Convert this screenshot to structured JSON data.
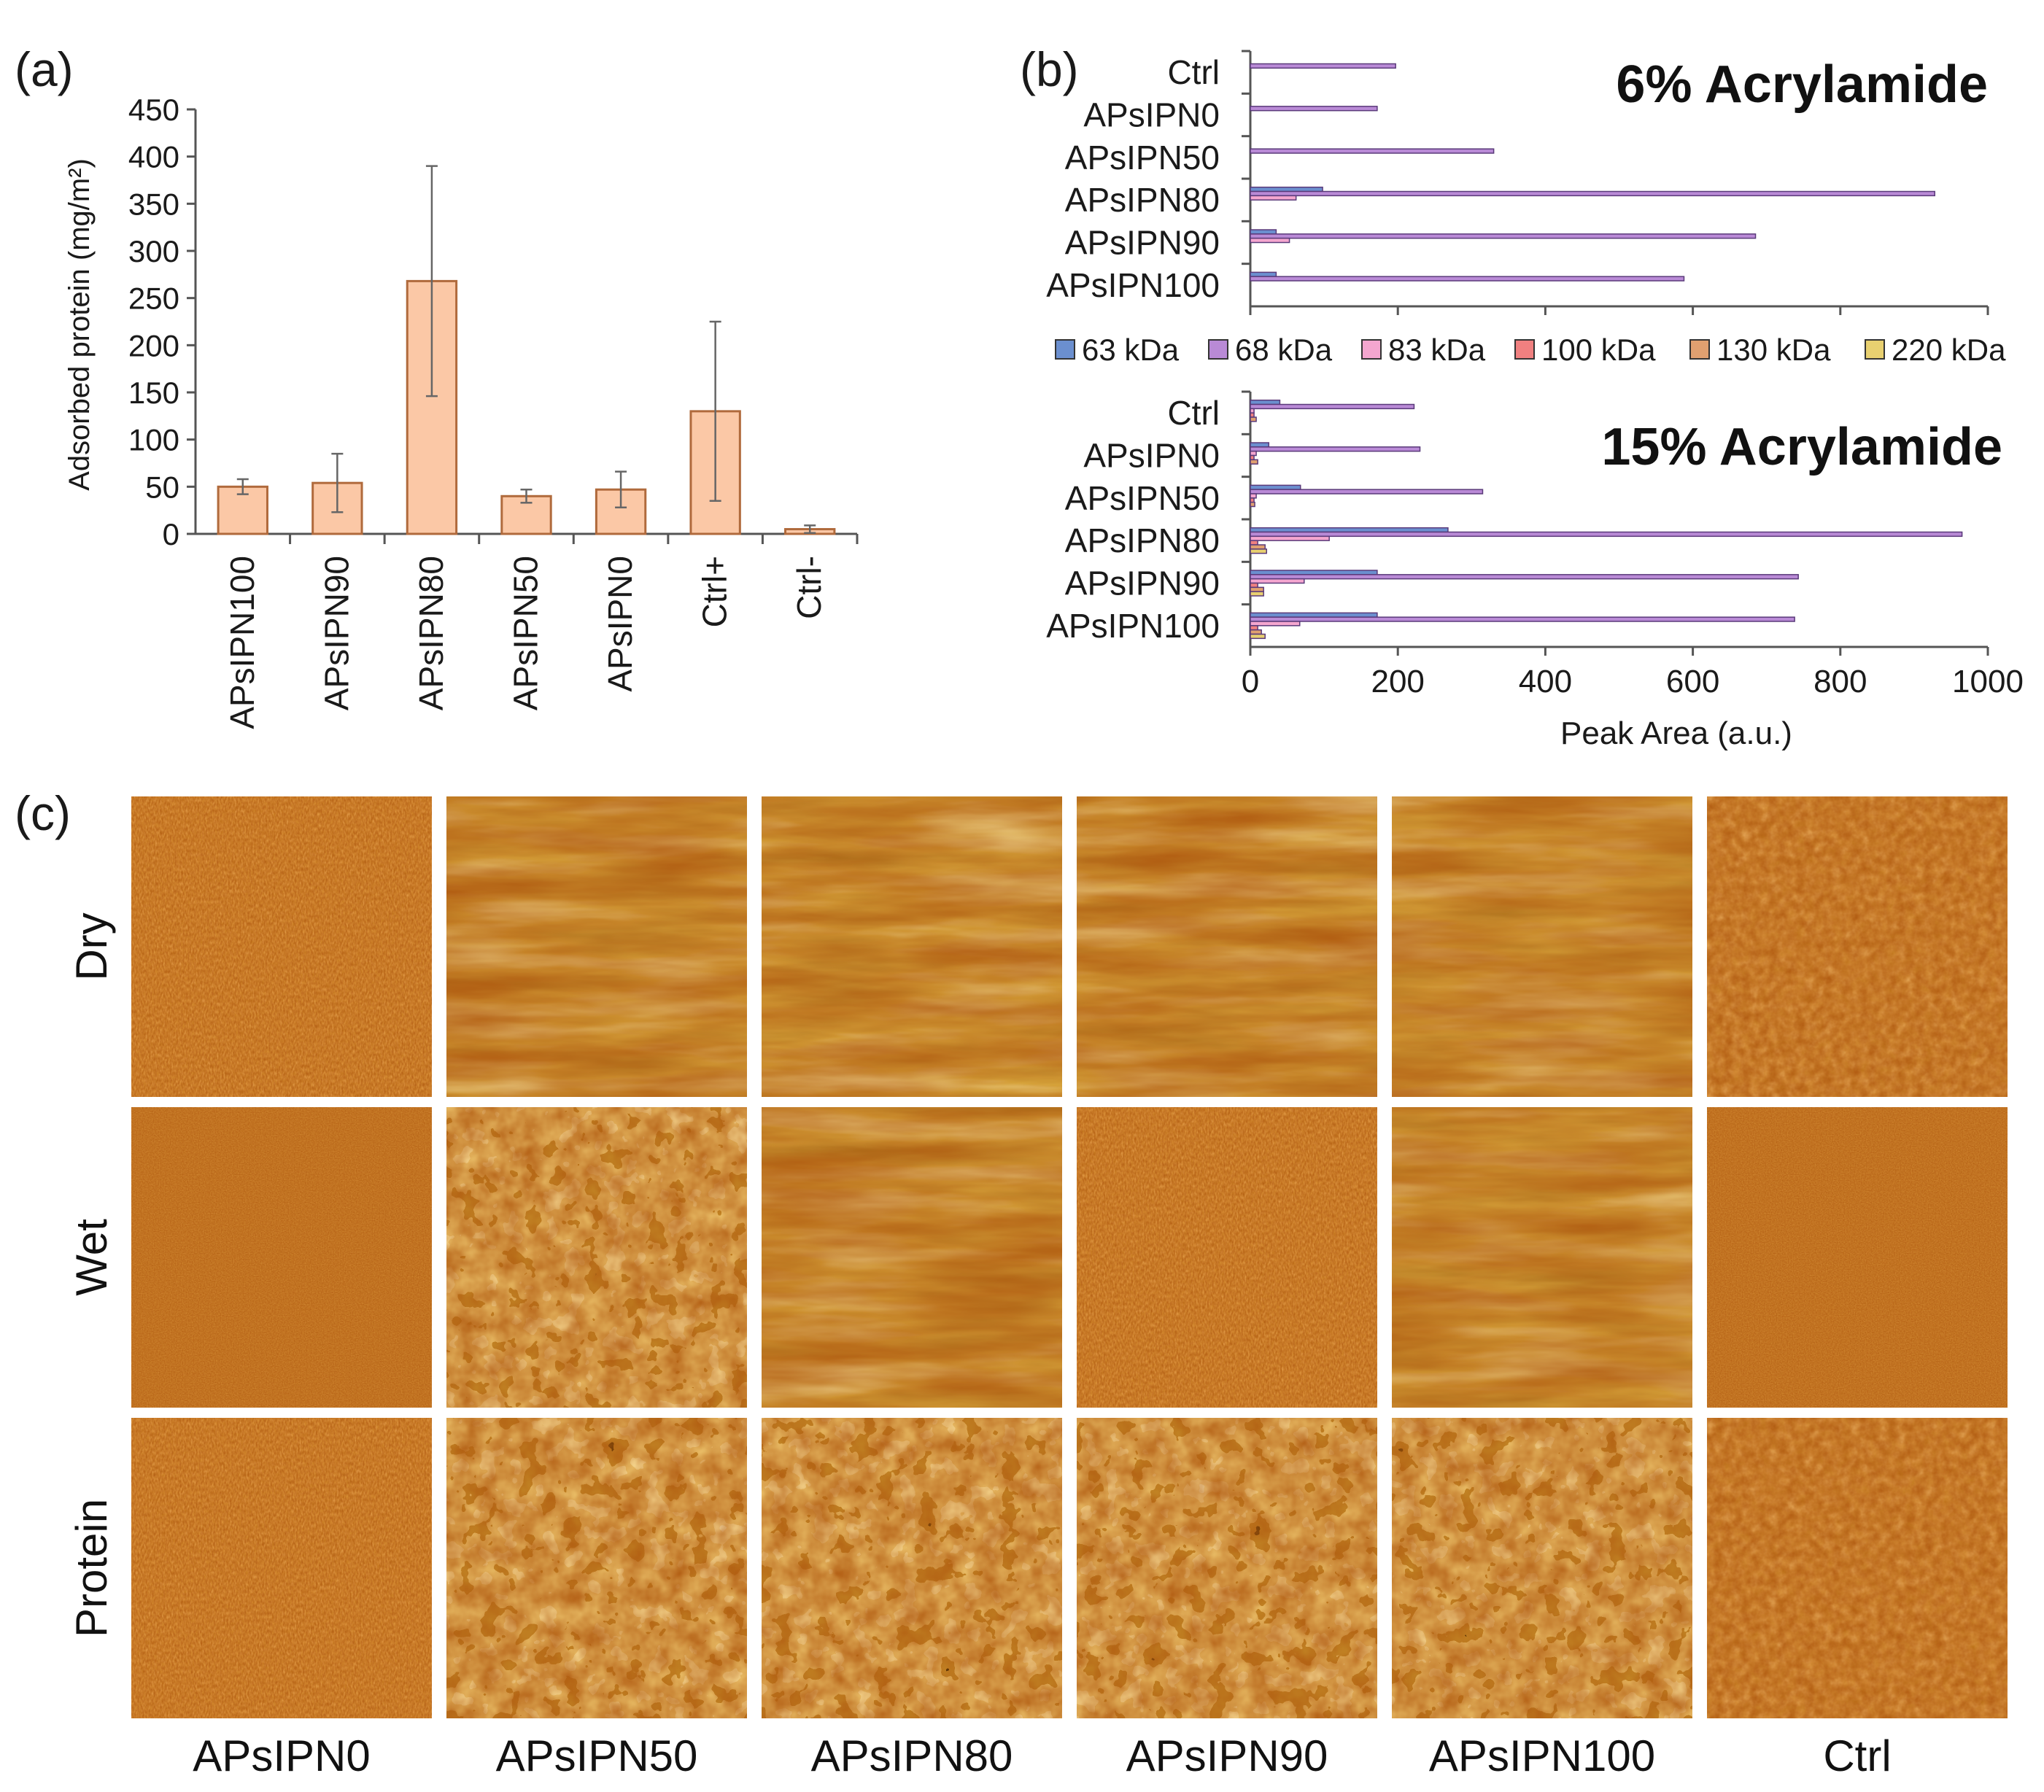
{
  "panels": {
    "a": "(a)",
    "b": "(b)",
    "c": "(c)"
  },
  "chart_data": [
    {
      "type": "bar",
      "panel": "(a)",
      "title": "",
      "xlabel": "",
      "ylabel": "Adsorbed protein (mg/m²)",
      "ylim": [
        0,
        450
      ],
      "yticks": [
        0,
        50,
        100,
        150,
        200,
        250,
        300,
        350,
        400,
        450
      ],
      "categories": [
        "APsIPN100",
        "APsIPN90",
        "APsIPN80",
        "APsIPN50",
        "APsIPN0",
        "Ctrl+",
        "Ctrl-"
      ],
      "values": [
        50,
        54,
        268,
        40,
        47,
        130,
        5
      ],
      "errors": [
        8,
        31,
        122,
        7,
        19,
        95,
        4
      ],
      "color": "#fbc8a6",
      "edge_color": "#b06a3c",
      "grid": false
    },
    {
      "type": "bar",
      "orientation": "horizontal",
      "panel": "(b)",
      "title": "6% Acrylamide",
      "xlabel": "",
      "xlim": [
        0,
        1000
      ],
      "categories": [
        "Ctrl",
        "APsIPN0",
        "APsIPN50",
        "APsIPN80",
        "APsIPN90",
        "APsIPN100"
      ],
      "series": [
        {
          "name": "63 kDa",
          "color": "#6b8fcf",
          "values": [
            0,
            0,
            0,
            98,
            35,
            35
          ]
        },
        {
          "name": "68 kDa",
          "color": "#b98ad6",
          "values": [
            197,
            172,
            330,
            928,
            685,
            588
          ]
        },
        {
          "name": "83 kDa",
          "color": "#f4a6cf",
          "values": [
            0,
            0,
            0,
            62,
            53,
            0
          ]
        },
        {
          "name": "100 kDa",
          "color": "#f08080",
          "values": [
            0,
            0,
            0,
            0,
            0,
            0
          ]
        },
        {
          "name": "130 kDa",
          "color": "#e0a070",
          "values": [
            0,
            0,
            0,
            0,
            0,
            0
          ]
        },
        {
          "name": "220 kDa",
          "color": "#e8d070",
          "values": [
            0,
            0,
            0,
            0,
            0,
            0
          ]
        }
      ]
    },
    {
      "type": "bar",
      "orientation": "horizontal",
      "panel": "(b)",
      "title": "15% Acrylamide",
      "xlabel": "Peak Area (a.u.)",
      "xlim": [
        0,
        1000
      ],
      "xticks": [
        0,
        200,
        400,
        600,
        800,
        1000
      ],
      "categories": [
        "Ctrl",
        "APsIPN0",
        "APsIPN50",
        "APsIPN80",
        "APsIPN90",
        "APsIPN100"
      ],
      "series": [
        {
          "name": "63 kDa",
          "color": "#6b8fcf",
          "values": [
            40,
            25,
            68,
            268,
            172,
            172
          ]
        },
        {
          "name": "68 kDa",
          "color": "#b98ad6",
          "values": [
            222,
            230,
            315,
            965,
            743,
            738
          ]
        },
        {
          "name": "83 kDa",
          "color": "#f4a6cf",
          "values": [
            5,
            8,
            8,
            107,
            73,
            67
          ]
        },
        {
          "name": "100 kDa",
          "color": "#f08080",
          "values": [
            5,
            5,
            5,
            10,
            10,
            10
          ]
        },
        {
          "name": "130 kDa",
          "color": "#e0a070",
          "values": [
            8,
            10,
            6,
            20,
            18,
            15
          ]
        },
        {
          "name": "220 kDa",
          "color": "#e8d070",
          "values": [
            0,
            0,
            0,
            22,
            18,
            20
          ]
        }
      ],
      "legend_position": "top"
    }
  ],
  "afm": {
    "rows": [
      "Dry",
      "Wet",
      "Protein"
    ],
    "cols": [
      "APsIPN0",
      "APsIPN50",
      "APsIPN80",
      "APsIPN90",
      "APsIPN100",
      "Ctrl"
    ]
  }
}
